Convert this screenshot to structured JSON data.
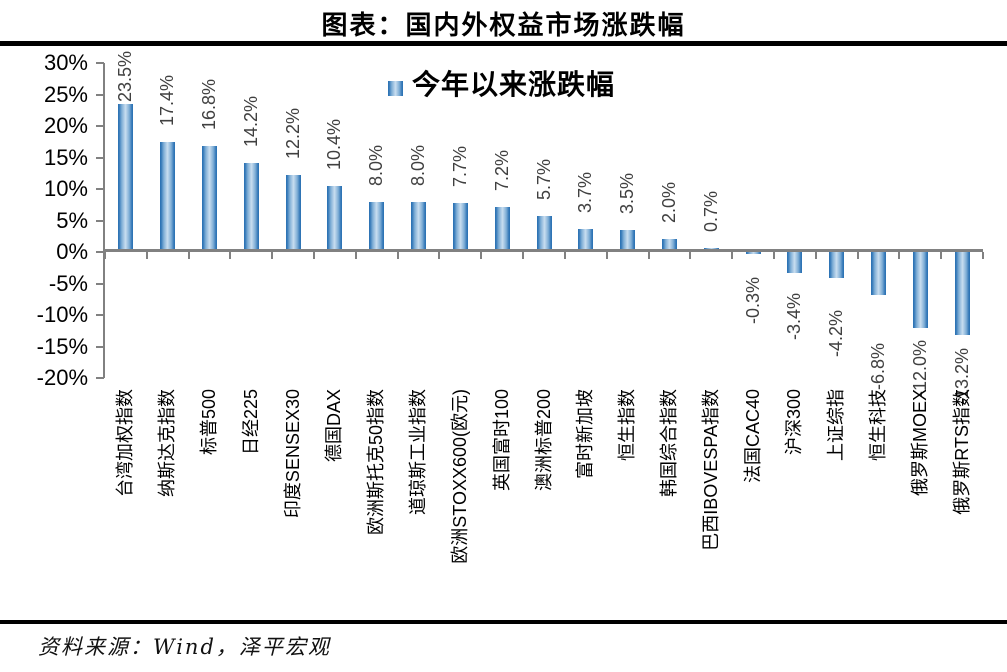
{
  "title": "图表：国内外权益市场涨跌幅",
  "legend": {
    "label": "今年以来涨跌幅"
  },
  "source": "资料来源：Wind，泽平宏观",
  "colors": {
    "bar_edge": "#2E74B5",
    "bar_center": "#C9DEF0",
    "axis": "#818181",
    "value_label": "#404040",
    "rule": "#000000"
  },
  "chart_data": {
    "type": "bar",
    "title": "图表：国内外权益市场涨跌幅",
    "legend_entries": [
      "今年以来涨跌幅"
    ],
    "legend_position": "top-center",
    "grid": false,
    "ylim": [
      -20,
      30
    ],
    "ytick_labels": [
      "30%",
      "25%",
      "20%",
      "15%",
      "10%",
      "5%",
      "0%",
      "-5%",
      "-10%",
      "-15%",
      "-20%"
    ],
    "categories": [
      "台湾加权指数",
      "纳斯达克指数",
      "标普500",
      "日经225",
      "印度SENSEX30",
      "德国DAX",
      "欧洲斯托克50指数",
      "道琼斯工业指数",
      "欧洲STOXX600(欧元)",
      "英国富时100",
      "澳洲标普200",
      "富时新加坡",
      "恒生指数",
      "韩国综合指数",
      "巴西IBOVESPA指数",
      "法国CAC40",
      "沪深300",
      "上证综指",
      "恒生科技",
      "俄罗斯MOEX",
      "俄罗斯RTS指数"
    ],
    "values": [
      23.5,
      17.4,
      16.8,
      14.2,
      12.2,
      10.4,
      8.0,
      8.0,
      7.7,
      7.2,
      5.7,
      3.7,
      3.5,
      2.0,
      0.7,
      -0.3,
      -3.4,
      -4.2,
      -6.8,
      -12.0,
      -13.2
    ],
    "value_labels": [
      "23.5%",
      "17.4%",
      "16.8%",
      "14.2%",
      "12.2%",
      "10.4%",
      "8.0%",
      "8.0%",
      "7.7%",
      "7.2%",
      "5.7%",
      "3.7%",
      "3.5%",
      "2.0%",
      "0.7%",
      "-0.3%",
      "-3.4%",
      "-4.2%",
      "-6.8%",
      "-12.0%",
      "-13.2%"
    ]
  }
}
